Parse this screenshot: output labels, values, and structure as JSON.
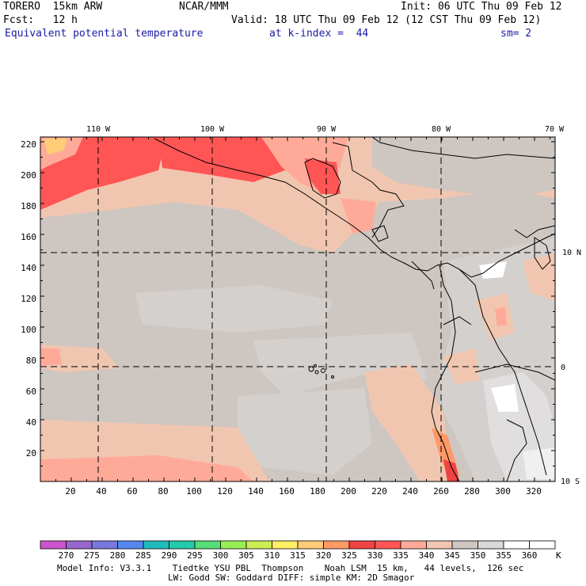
{
  "header": {
    "model": "TORERO  15km ARW",
    "org": "NCAR/MMM",
    "init": "Init: 06 UTC Thu 09 Feb 12",
    "fcst": "Fcst:   12 h",
    "valid": "Valid: 18 UTC Thu 09 Feb 12 (12 CST Thu 09 Feb 12)",
    "field": "Equivalent potential temperature",
    "level": "at k-index =  44",
    "smooth": "sm= 2"
  },
  "map": {
    "lon_labels": [
      "110 W",
      "100 W",
      "90 W",
      "80 W",
      "70 W"
    ],
    "lat_labels": [
      "10 N",
      "0",
      "10 S"
    ],
    "y_ticks": [
      "20",
      "40",
      "60",
      "80",
      "100",
      "120",
      "140",
      "160",
      "180",
      "200",
      "220"
    ],
    "x_ticks": [
      "20",
      "40",
      "60",
      "80",
      "100",
      "120",
      "140",
      "160",
      "180",
      "200",
      "220",
      "240",
      "260",
      "280",
      "300",
      "320"
    ]
  },
  "colorbar": {
    "unit": "K",
    "labels": [
      "270",
      "275",
      "280",
      "285",
      "290",
      "295",
      "300",
      "305",
      "310",
      "315",
      "320",
      "325",
      "330",
      "335",
      "340",
      "345",
      "350",
      "355",
      "360"
    ],
    "colors": [
      "#cc55cc",
      "#9966cc",
      "#7777dd",
      "#5588ee",
      "#22bbbb",
      "#22ccaa",
      "#55dd77",
      "#99ee55",
      "#ccee55",
      "#ffee66",
      "#ffcc77",
      "#ff9966",
      "#ee4444",
      "#ff5555",
      "#ffaa99",
      "#f1c6b0",
      "#cec6c0",
      "#d9d9d9",
      "#ffffff"
    ]
  },
  "footer": {
    "line1": "Model Info: V3.3.1    Tiedtke YSU PBL  Thompson    Noah LSM  15 km,   44 levels,  126 sec",
    "line2": "LW: Godd SW: Goddard DIFF: simple KM: 2D Smagor"
  }
}
